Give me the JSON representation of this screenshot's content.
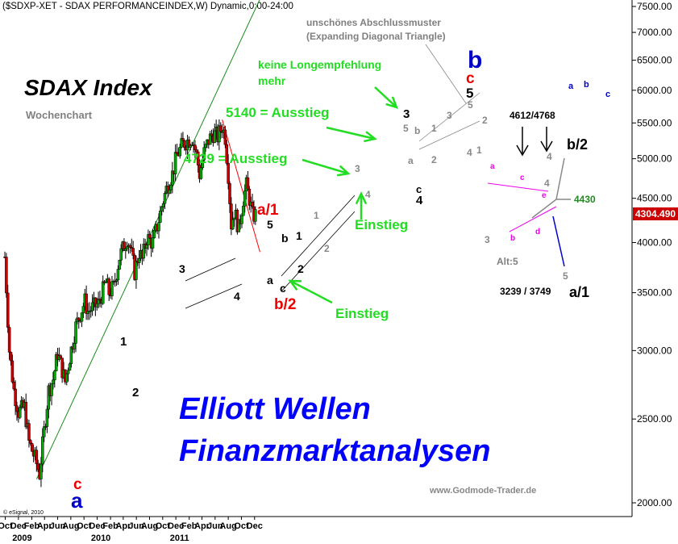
{
  "header": {
    "title": "($SDXP-XET - SDAX PERFORMANCEINDEX,W) Dynamic,0:00-24:00"
  },
  "chart_data": {
    "type": "candlestick",
    "title": "SDAX Index",
    "subtitle": "Wochenchart",
    "y_scale": "log",
    "ylim": [
      1950,
      7650
    ],
    "y_ticks": [
      "7500.00",
      "7000.00",
      "6500.00",
      "6000.00",
      "5500.00",
      "5000.00",
      "4500.00",
      "4000.00",
      "3500.00",
      "3000.00",
      "2500.00",
      "2000.00"
    ],
    "y_tick_values": [
      7500,
      7000,
      6500,
      6000,
      5500,
      5000,
      4500,
      4000,
      3500,
      3000,
      2500,
      2000
    ],
    "x_months": [
      "Oct",
      "Dec",
      "Feb",
      "Apr",
      "Jun",
      "Aug",
      "Oct",
      "Dec",
      "Feb",
      "Apr",
      "Jun",
      "Aug",
      "Oct",
      "Dec",
      "Feb",
      "Apr",
      "Jun",
      "Aug",
      "Oct",
      "Dec"
    ],
    "x_years": [
      "2009",
      "2010",
      "2011"
    ],
    "last_price": "4304.490",
    "price_path": [
      [
        "2008-09-29",
        3850
      ],
      [
        "2008-10-20",
        3000
      ],
      [
        "2008-11-10",
        2700
      ],
      [
        "2008-12-01",
        2550
      ],
      [
        "2008-12-29",
        2580
      ],
      [
        "2009-01-19",
        2350
      ],
      [
        "2009-02-16",
        2250
      ],
      [
        "2009-03-09",
        2160
      ],
      [
        "2009-03-30",
        2420
      ],
      [
        "2009-04-20",
        2700
      ],
      [
        "2009-05-11",
        2780
      ],
      [
        "2009-06-01",
        2980
      ],
      [
        "2009-06-22",
        2850
      ],
      [
        "2009-07-06",
        2760
      ],
      [
        "2009-07-27",
        2950
      ],
      [
        "2009-08-24",
        3200
      ],
      [
        "2009-09-21",
        3350
      ],
      [
        "2009-10-05",
        3420
      ],
      [
        "2009-10-19",
        3330
      ],
      [
        "2009-11-09",
        3360
      ],
      [
        "2009-12-07",
        3400
      ],
      [
        "2010-01-11",
        3600
      ],
      [
        "2010-01-25",
        3500
      ],
      [
        "2010-02-15",
        3550
      ],
      [
        "2010-03-15",
        3850
      ],
      [
        "2010-04-19",
        4050
      ],
      [
        "2010-05-03",
        3950
      ],
      [
        "2010-05-24",
        3700
      ],
      [
        "2010-06-14",
        3900
      ],
      [
        "2010-06-28",
        3820
      ],
      [
        "2010-07-19",
        4050
      ],
      [
        "2010-08-16",
        4000
      ],
      [
        "2010-09-06",
        4180
      ],
      [
        "2010-10-04",
        4480
      ],
      [
        "2010-10-25",
        4680
      ],
      [
        "2010-11-15",
        4800
      ],
      [
        "2010-12-06",
        5050
      ],
      [
        "2011-01-03",
        5200
      ],
      [
        "2011-01-24",
        5250
      ],
      [
        "2011-02-14",
        5290
      ],
      [
        "2011-03-07",
        5050
      ],
      [
        "2011-03-21",
        4800
      ],
      [
        "2011-04-11",
        5080
      ],
      [
        "2011-05-02",
        5250
      ],
      [
        "2011-05-23",
        5350
      ],
      [
        "2011-06-13",
        5300
      ],
      [
        "2011-07-04",
        5450
      ],
      [
        "2011-07-18",
        5300
      ],
      [
        "2011-08-01",
        4800
      ],
      [
        "2011-08-15",
        4200
      ],
      [
        "2011-08-29",
        4350
      ],
      [
        "2011-09-19",
        4150
      ],
      [
        "2011-10-10",
        4500
      ],
      [
        "2011-10-24",
        4650
      ],
      [
        "2011-11-07",
        4500
      ],
      [
        "2011-11-21",
        4300
      ],
      [
        "2011-12-05",
        4304
      ]
    ],
    "lines": [
      {
        "name": "trend",
        "color": "#1a8c1a",
        "points": [
          [
            "2009-02-23",
            2130
          ],
          [
            "2011-12-26",
            7650
          ]
        ]
      },
      {
        "name": "upper",
        "color": "#ff0000",
        "points": [
          [
            "2011-07-04",
            5550
          ],
          [
            "2011-12-26",
            3900
          ]
        ]
      }
    ],
    "annotations": {
      "kommentar1": "unschönes Abschlussmuster",
      "kommentar2": "(Expanding Diagonal Triangle)",
      "keine1": "keine Longempfehlung",
      "keine2": "mehr",
      "ausstieg5140": "5140 = Ausstieg",
      "ausstieg4729": "4729 = Ausstieg",
      "einstieg1": "Einstieg",
      "einstieg2": "Einstieg",
      "ziel_oben": "4612/4768",
      "ziel_unten": "3239 / 3749",
      "level4430": "4430",
      "alt5": "Alt:5",
      "b2_right": "b/2",
      "a1_right": "a/1",
      "a1_red": "a/1",
      "b2_red": "b/2",
      "c_bottom": "c",
      "a_bottom": "a",
      "b_blue": "b",
      "c_red_top": "c",
      "five_black_top": "5"
    },
    "wave_labels": [
      {
        "t": "3",
        "c": "#000"
      },
      {
        "t": "4",
        "c": "#000"
      },
      {
        "t": "1",
        "c": "#000"
      },
      {
        "t": "2",
        "c": "#000"
      },
      {
        "t": "5",
        "c": "#000"
      },
      {
        "t": "b",
        "c": "#000"
      },
      {
        "t": "a",
        "c": "#000"
      },
      {
        "t": "c",
        "c": "#000"
      },
      {
        "t": "1",
        "c": "#000"
      },
      {
        "t": "2",
        "c": "#000"
      },
      {
        "t": "1",
        "c": "#888"
      },
      {
        "t": "2",
        "c": "#888"
      },
      {
        "t": "3",
        "c": "#888"
      },
      {
        "t": "4",
        "c": "#888"
      },
      {
        "t": "3",
        "c": "#000"
      },
      {
        "t": "5",
        "c": "#888"
      },
      {
        "t": "b",
        "c": "#888"
      },
      {
        "t": "a",
        "c": "#888"
      },
      {
        "t": "c",
        "c": "#000"
      },
      {
        "t": "4",
        "c": "#000"
      },
      {
        "t": "1",
        "c": "#888"
      },
      {
        "t": "2",
        "c": "#888"
      },
      {
        "t": "3",
        "c": "#888"
      },
      {
        "t": "4",
        "c": "#888"
      },
      {
        "t": "5",
        "c": "#888"
      },
      {
        "t": "1",
        "c": "#888"
      },
      {
        "t": "2",
        "c": "#888"
      },
      {
        "t": "3",
        "c": "#888"
      },
      {
        "t": "4",
        "c": "#888"
      },
      {
        "t": "4",
        "c": "#888"
      },
      {
        "t": "5",
        "c": "#888"
      },
      {
        "t": "a",
        "c": "#ee00ee"
      },
      {
        "t": "b",
        "c": "#ee00ee"
      },
      {
        "t": "c",
        "c": "#ee00ee"
      },
      {
        "t": "d",
        "c": "#ee00ee"
      },
      {
        "t": "e",
        "c": "#ee00ee"
      },
      {
        "t": "a",
        "c": "#0000cc"
      },
      {
        "t": "b",
        "c": "#0000cc"
      },
      {
        "t": "c",
        "c": "#0000cc"
      }
    ],
    "watermark1": "Elliott Wellen",
    "watermark2": "Finanzmarktanalysen",
    "source": "www.Godmode-Trader.de",
    "copyright": "© eSignal, 2010",
    "colors": {
      "up": "#00aa00",
      "down": "#cc0000",
      "last_price_bg": "#cc0000",
      "axis_bg": "#ffffff"
    }
  }
}
